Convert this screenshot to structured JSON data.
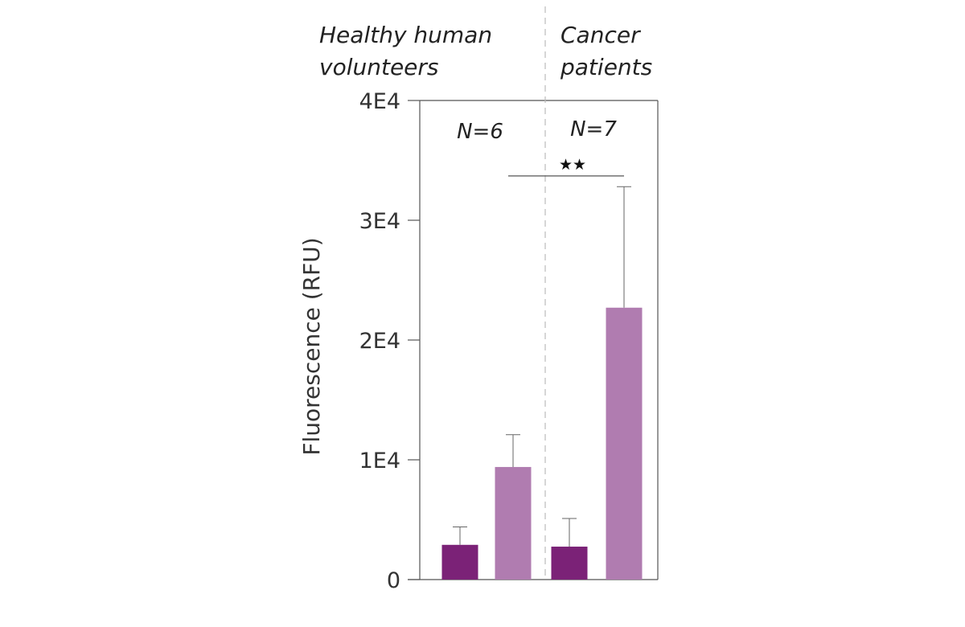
{
  "chart_data": {
    "type": "bar",
    "ylabel": "Fluorescence (RFU)",
    "ylim": [
      0,
      40000
    ],
    "yticks": [
      {
        "value": 0,
        "label": "0"
      },
      {
        "value": 10000,
        "label": "1E4"
      },
      {
        "value": 20000,
        "label": "2E4"
      },
      {
        "value": 30000,
        "label": "3E4"
      },
      {
        "value": 40000,
        "label": "4E4"
      }
    ],
    "groups": [
      {
        "label_lines": [
          "Healthy human",
          "volunteers"
        ],
        "n_label": "N=6"
      },
      {
        "label_lines": [
          "Cancer",
          "patients"
        ],
        "n_label": "N=7"
      }
    ],
    "bars": [
      {
        "group": 0,
        "value": 2900,
        "error": 1500,
        "color": "#7b2277"
      },
      {
        "group": 0,
        "value": 9400,
        "error": 2700,
        "color": "#b07cb0"
      },
      {
        "group": 1,
        "value": 2750,
        "error": 2350,
        "color": "#7b2277"
      },
      {
        "group": 1,
        "value": 22700,
        "error": 10100,
        "color": "#b07cb0"
      }
    ],
    "significance": {
      "label": "★★",
      "from_bar": 1,
      "to_bar": 3,
      "level": 33700
    },
    "grid": false
  }
}
